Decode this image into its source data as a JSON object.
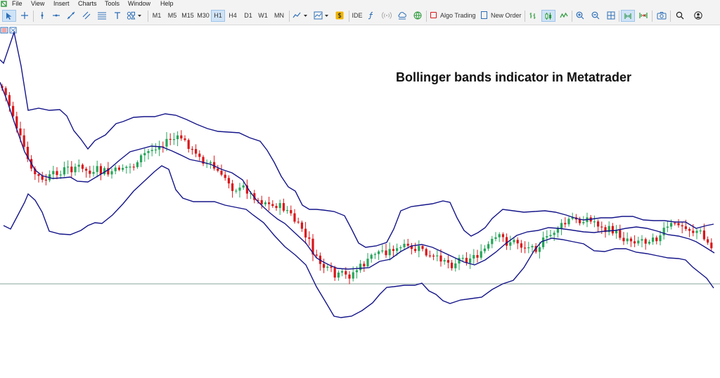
{
  "menu": [
    "File",
    "View",
    "Insert",
    "Charts",
    "Tools",
    "Window",
    "Help"
  ],
  "timeframes": [
    "M1",
    "M5",
    "M15",
    "M30",
    "H1",
    "H4",
    "D1",
    "W1",
    "MN"
  ],
  "active_timeframe": "H1",
  "toolbar": {
    "ide_label": "IDE",
    "algo_trading_label": "Algo Trading",
    "new_order_label": "New Order"
  },
  "annotation": "Bollinger bands indicator in Metatrader",
  "colors": {
    "bullish": "#26a65b",
    "bearish": "#d9161a",
    "bands": "#15158a",
    "price_line": "#8aa39b"
  }
}
